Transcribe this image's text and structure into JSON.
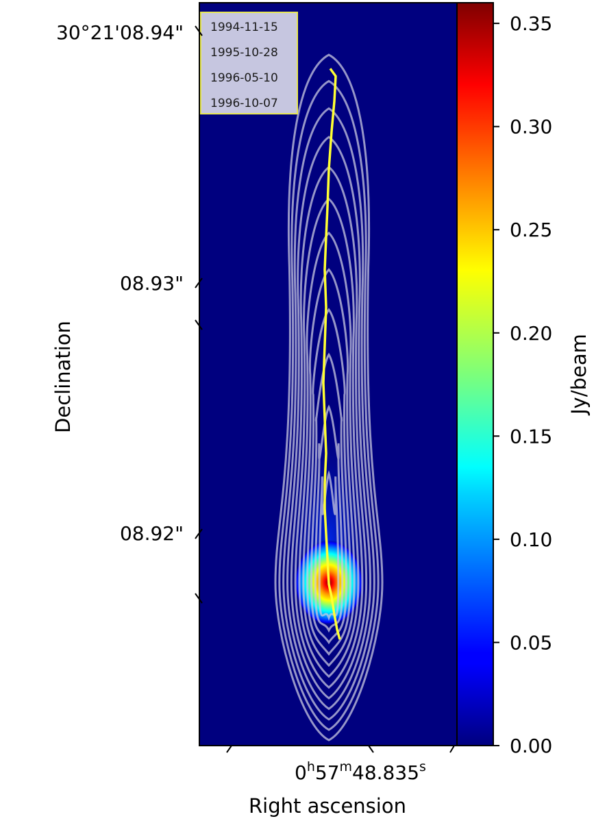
{
  "chart_data": {
    "type": "heatmap",
    "title": "",
    "xlabel": "Right ascension",
    "ylabel": "Declination",
    "x_ticks": [
      {
        "label_h": "0",
        "label_h_unit": "h",
        "label_m": "57",
        "label_m_unit": "m",
        "label_s": "48.835",
        "label_s_unit": "s"
      }
    ],
    "y_ticks": [
      {
        "value": 8.94,
        "label": "30°21'08.94\""
      },
      {
        "value": 8.93,
        "label": "08.93\""
      },
      {
        "value": 8.92,
        "label": "08.92\""
      }
    ],
    "dec_range_arcsec": [
      8.9118,
      8.9414
    ],
    "colorbar": {
      "label": "Jy/beam",
      "colormap": "jet",
      "range": [
        0.0,
        0.36
      ],
      "ticks": [
        "0.00",
        "0.05",
        "0.10",
        "0.15",
        "0.20",
        "0.25",
        "0.30",
        "0.35"
      ],
      "tick_values": [
        0.0,
        0.05,
        0.1,
        0.15,
        0.2,
        0.25,
        0.3,
        0.35
      ]
    },
    "peak_flux_jy_per_beam": 0.36,
    "contours": {
      "color": "#c8c8e0",
      "levels": 12
    },
    "track": {
      "color": "#ffff33",
      "dec_points": [
        8.9158,
        8.9162,
        8.9168,
        8.9175,
        8.918,
        8.919,
        8.92,
        8.921,
        8.922,
        8.9232,
        8.9246,
        8.926,
        8.9275,
        8.929,
        8.9305,
        8.9318,
        8.933,
        8.9345,
        8.936,
        8.9372,
        8.9382,
        8.9385
      ]
    },
    "legend": {
      "position": "top-left",
      "entries": [
        "1994-11-15",
        "1995-10-28",
        "1996-05-10",
        "1996-10-07"
      ]
    },
    "colors": {
      "background": "#00007f",
      "legend_face": "#c6c6e0",
      "legend_edge": "#e8e850"
    }
  }
}
